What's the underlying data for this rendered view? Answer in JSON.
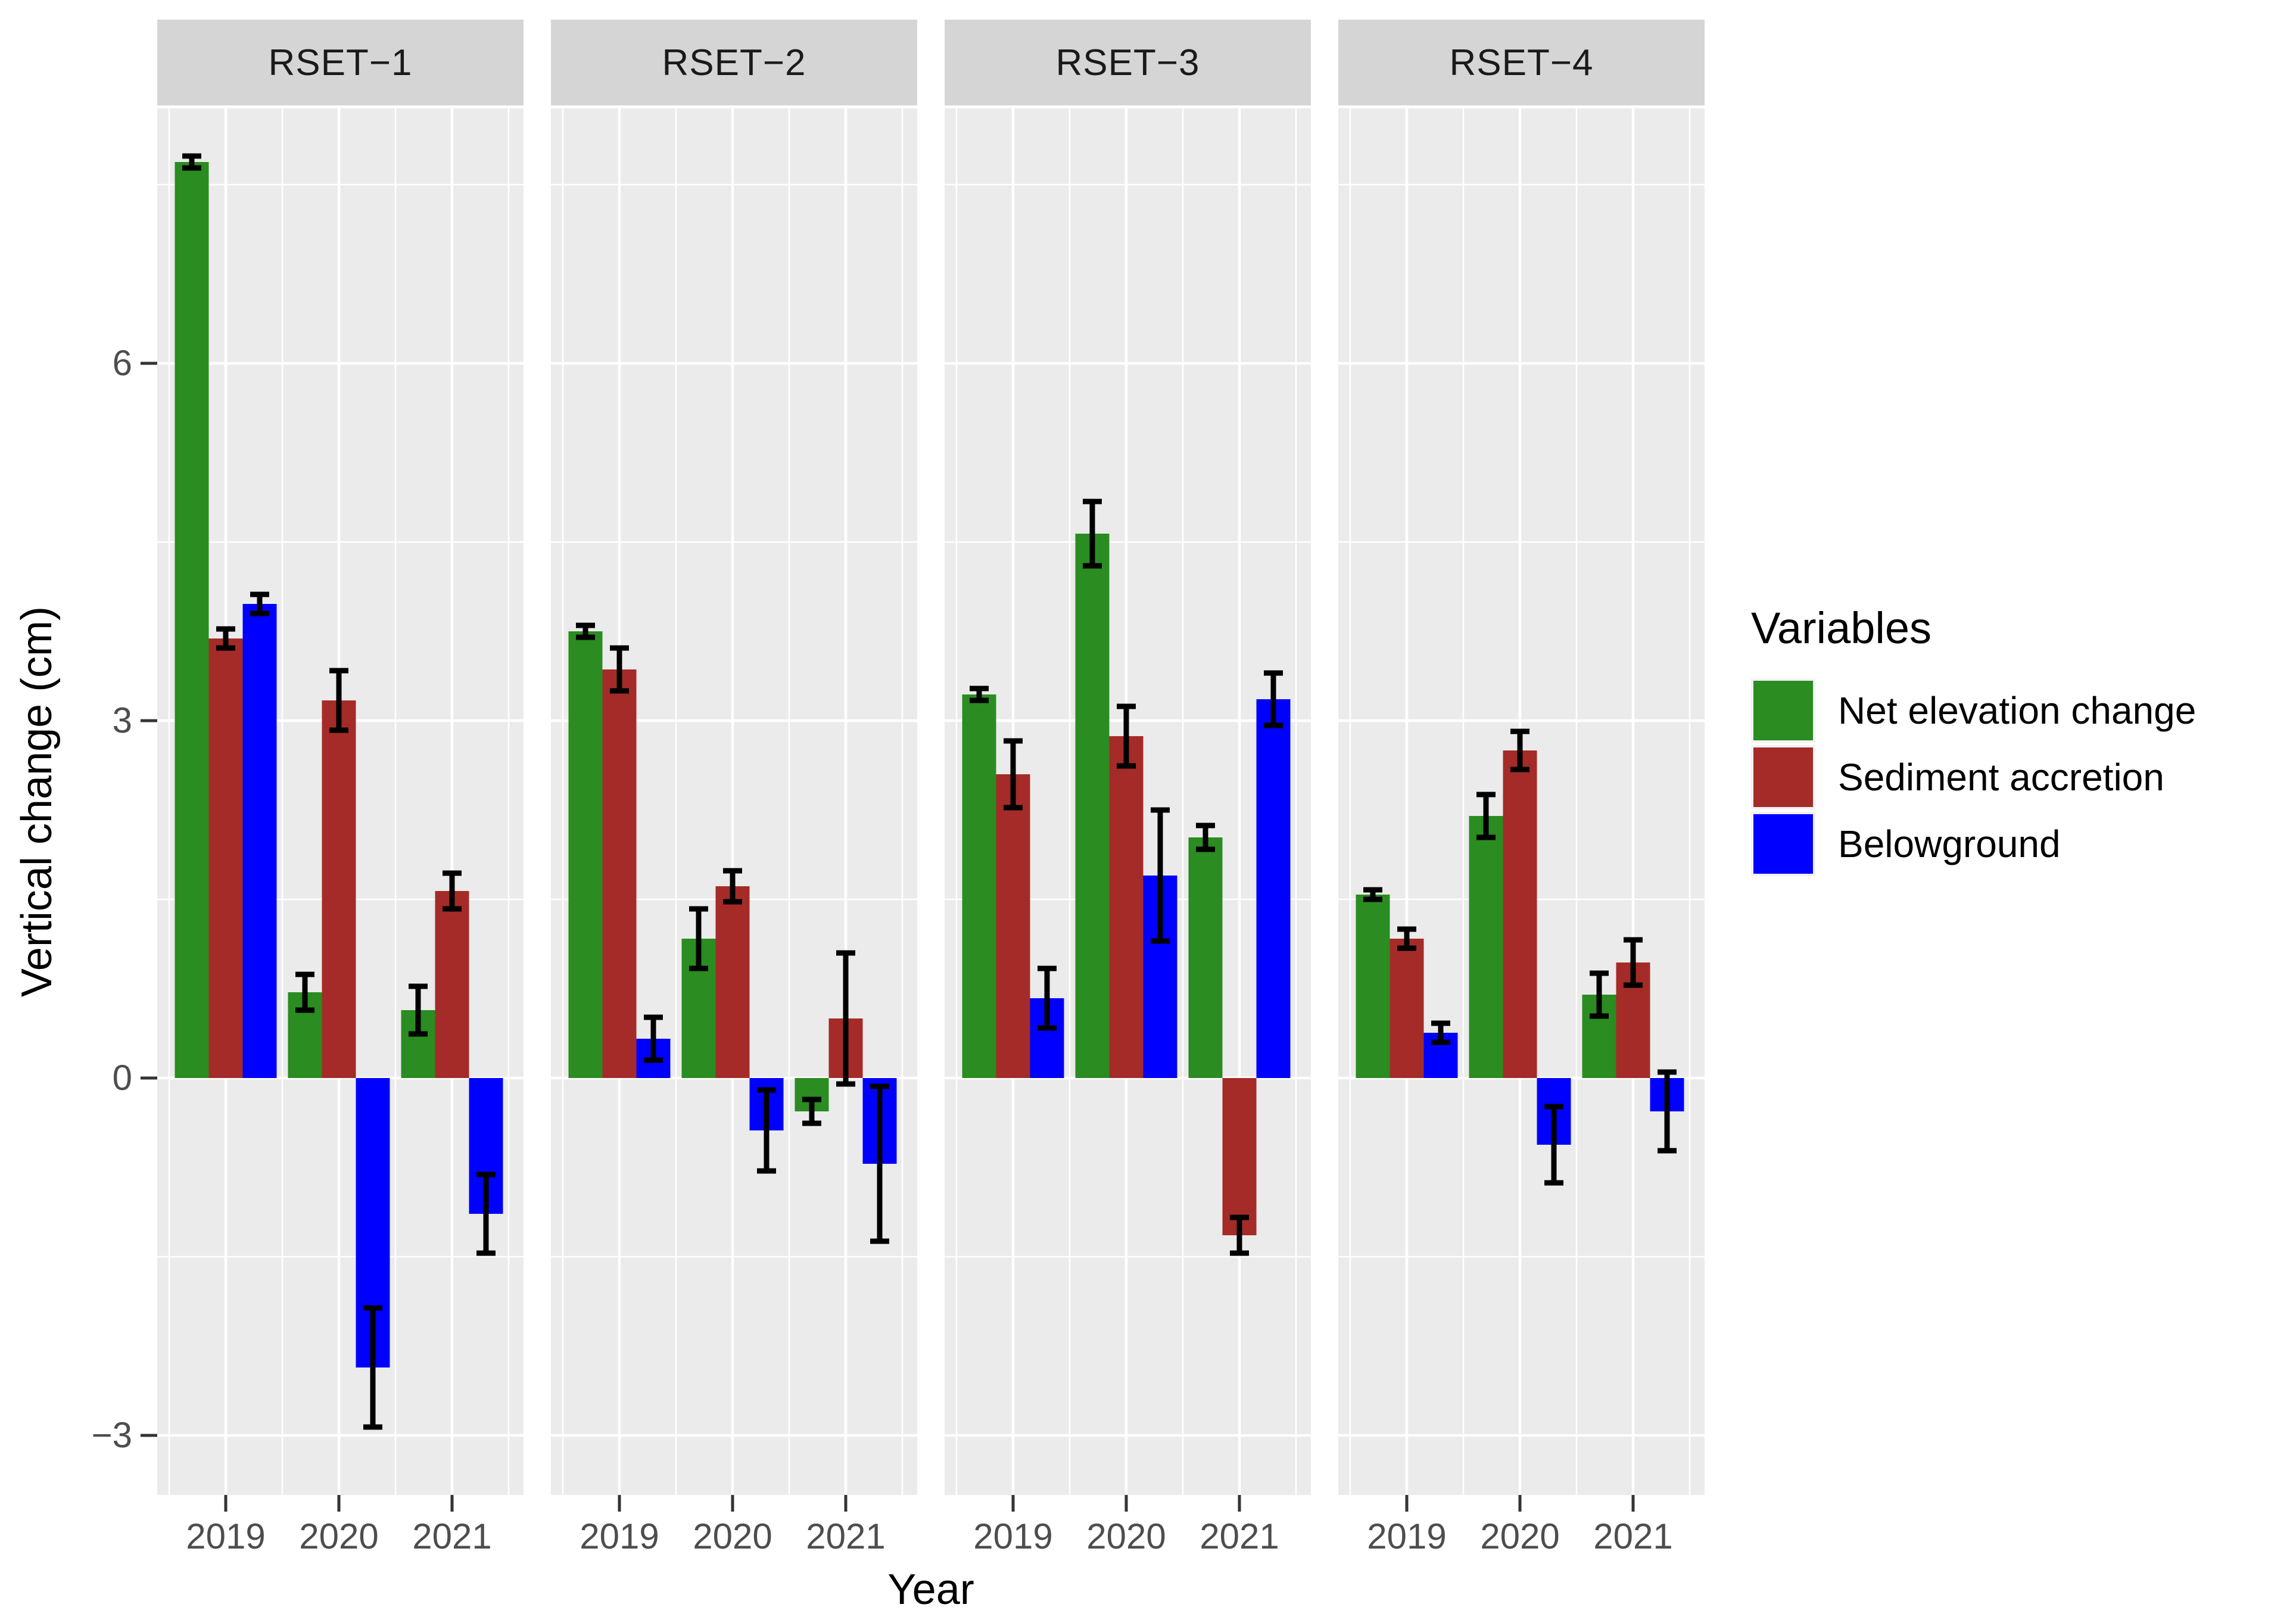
{
  "chart_data": {
    "type": "bar",
    "title": "",
    "xlabel": "Year",
    "ylabel": "Vertical change (cm)",
    "legend_title": "Variables",
    "legend_position": "right",
    "facet_titles": [
      "RSET−1",
      "RSET−2",
      "RSET−3",
      "RSET−4"
    ],
    "categories": [
      "2019",
      "2020",
      "2021"
    ],
    "y_ticks": [
      6,
      3,
      0,
      -3
    ],
    "y_tick_labels": [
      "6",
      "3",
      "0",
      "−3"
    ],
    "y_minor_breaks": [
      7.5,
      4.5,
      1.5,
      -1.5
    ],
    "ylim": [
      -3.5,
      8.14
    ],
    "grid": "white major and minor gridlines on gray panels",
    "error_bars": true,
    "series": [
      {
        "name": "Net elevation change",
        "color": "#2A8C21",
        "data": {
          "RSET-1": {
            "values": [
              7.69,
              0.72,
              0.57
            ],
            "errors": [
              0.05,
              0.15,
              0.2
            ]
          },
          "RSET-2": {
            "values": [
              3.75,
              1.17,
              -0.28
            ],
            "errors": [
              0.05,
              0.25,
              0.1
            ]
          },
          "RSET-3": {
            "values": [
              3.22,
              4.57,
              2.02
            ],
            "errors": [
              0.05,
              0.27,
              0.1
            ]
          },
          "RSET-4": {
            "values": [
              1.54,
              2.2,
              0.7
            ],
            "errors": [
              0.04,
              0.18,
              0.18
            ]
          }
        }
      },
      {
        "name": "Sediment accretion",
        "color": "#A52B28",
        "data": {
          "RSET-1": {
            "values": [
              3.69,
              3.17,
              1.57
            ],
            "errors": [
              0.08,
              0.25,
              0.15
            ]
          },
          "RSET-2": {
            "values": [
              3.43,
              1.61,
              0.5
            ],
            "errors": [
              0.18,
              0.13,
              0.55
            ]
          },
          "RSET-3": {
            "values": [
              2.55,
              2.87,
              -1.32
            ],
            "errors": [
              0.28,
              0.25,
              0.15
            ]
          },
          "RSET-4": {
            "values": [
              1.17,
              2.75,
              0.97
            ],
            "errors": [
              0.08,
              0.16,
              0.19
            ]
          }
        }
      },
      {
        "name": "Belowground",
        "color": "#0000FF",
        "data": {
          "RSET-1": {
            "values": [
              3.98,
              -2.43,
              -1.14
            ],
            "errors": [
              0.08,
              0.5,
              0.33
            ]
          },
          "RSET-2": {
            "values": [
              0.33,
              -0.44,
              -0.72
            ],
            "errors": [
              0.18,
              0.34,
              0.65
            ]
          },
          "RSET-3": {
            "values": [
              0.67,
              1.7,
              3.18
            ],
            "errors": [
              0.25,
              0.55,
              0.22
            ]
          },
          "RSET-4": {
            "values": [
              0.38,
              -0.56,
              -0.28
            ],
            "errors": [
              0.08,
              0.32,
              0.33
            ]
          }
        }
      }
    ],
    "colors": {
      "panel_background": "#EBEBEB",
      "strip_background": "#D5D5D5",
      "gridline": "#FFFFFF",
      "tick_mark": "#333333",
      "tick_label": "#4D4D4D",
      "error_bar": "#000000"
    }
  }
}
